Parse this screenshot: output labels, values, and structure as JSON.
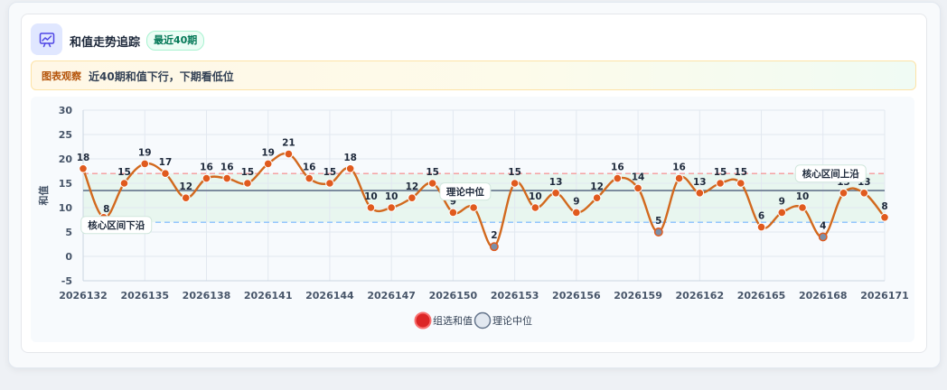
{
  "header": {
    "title": "和值走势追踪",
    "badge": "最近40期"
  },
  "notice": {
    "tag": "图表观察",
    "text": "近40期和值下行，下期看低位"
  },
  "colors": {
    "line": "#d2691e",
    "point": "#e05a1e",
    "band_fill": "#e8f6ef",
    "upper_edge": "#f4a3a3",
    "lower_edge": "#93c5fd",
    "median": "#64748b",
    "legend_selected": "#dc2626"
  },
  "chart_data": {
    "type": "line",
    "ylabel": "和值",
    "ylim": [
      -5,
      30
    ],
    "yticks": [
      -5,
      0,
      5,
      10,
      15,
      20,
      25,
      30
    ],
    "x": [
      2026132,
      2026133,
      2026134,
      2026135,
      2026136,
      2026137,
      2026138,
      2026139,
      2026140,
      2026141,
      2026142,
      2026143,
      2026144,
      2026145,
      2026146,
      2026147,
      2026148,
      2026149,
      2026150,
      2026151,
      2026152,
      2026153,
      2026154,
      2026155,
      2026156,
      2026157,
      2026158,
      2026159,
      2026160,
      2026161,
      2026162,
      2026163,
      2026164,
      2026165,
      2026166,
      2026167,
      2026168,
      2026169,
      2026170,
      2026171
    ],
    "xticks": [
      "2026132",
      "2026135",
      "2026138",
      "2026141",
      "2026144",
      "2026147",
      "2026150",
      "2026153",
      "2026156",
      "2026159",
      "2026162",
      "2026165",
      "2026168",
      "2026171"
    ],
    "grid": true,
    "series": [
      {
        "name": "组选和值",
        "values": [
          18,
          8,
          15,
          19,
          17,
          12,
          16,
          16,
          15,
          19,
          21,
          16,
          15,
          18,
          10,
          10,
          12,
          15,
          9,
          10,
          2,
          15,
          10,
          13,
          9,
          12,
          16,
          14,
          5,
          16,
          13,
          15,
          15,
          6,
          9,
          10,
          4,
          13,
          13,
          8
        ]
      }
    ],
    "reference_lines": [
      {
        "name": "理论中位",
        "value": 13.5,
        "style": "solid"
      },
      {
        "name": "核心区间上沿",
        "value": 17,
        "style": "dashed"
      },
      {
        "name": "核心区间下沿",
        "value": 7,
        "style": "dashed"
      }
    ],
    "annotations": {
      "median": "理论中位",
      "upper": "核心区间上沿",
      "lower": "核心区间下沿"
    },
    "legend": [
      {
        "label": "组选和值"
      },
      {
        "label": "理论中位"
      }
    ],
    "legend_position": "bottom"
  }
}
